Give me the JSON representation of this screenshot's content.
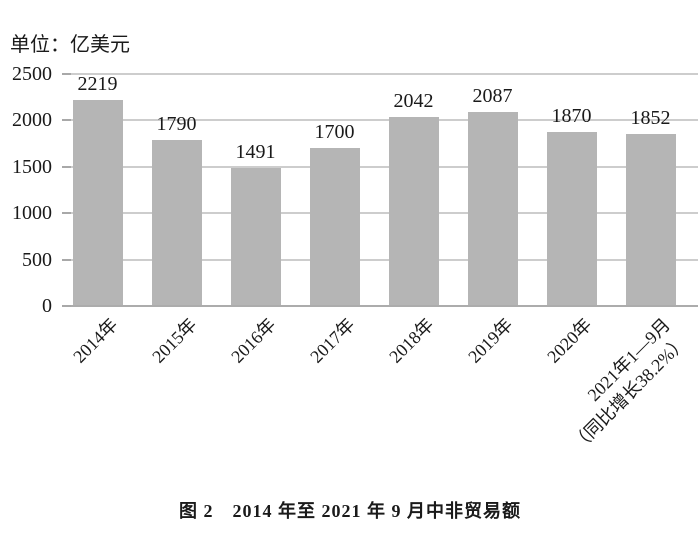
{
  "figure": {
    "unit_label": "单位：亿美元",
    "caption": "图 2　2014 年至 2021 年 9 月中非贸易额"
  },
  "chart_data": {
    "type": "bar",
    "title": "图 2　2014 年至 2021 年 9 月中非贸易额",
    "unit": "单位：亿美元",
    "categories": [
      "2014年",
      "2015年",
      "2016年",
      "2017年",
      "2018年",
      "2019年",
      "2020年",
      "2021年1—9月\n（同比增长38.2%）"
    ],
    "values": [
      2219,
      1790,
      1491,
      1700,
      2042,
      2087,
      1870,
      1852
    ],
    "value_labels": [
      "2219",
      "1790",
      "1491",
      "1700",
      "2042",
      "2087",
      "1870",
      "1852"
    ],
    "annotation_last_bar": "同比增长38.2%",
    "xlabel": "",
    "ylabel": "亿美元",
    "ylim": [
      0,
      2500
    ],
    "yticks": [
      0,
      500,
      1000,
      1500,
      2000,
      2500
    ],
    "ytick_labels": [
      "0",
      "500",
      "1000",
      "1500",
      "2000",
      "2500"
    ],
    "grid": true,
    "legend": "none",
    "bar_color": "#b5b5b5",
    "gridline_color": "#cdcdcd",
    "baseline_color": "#acacac",
    "text_color": "#1a1a1a"
  }
}
